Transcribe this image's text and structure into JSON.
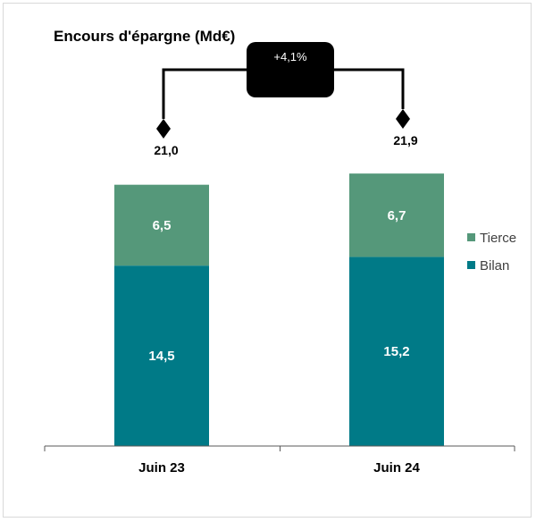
{
  "chart_data": {
    "type": "bar",
    "stacked": true,
    "title": "Encours d'épargne (Md€)",
    "categories": [
      "Juin 23",
      "Juin 24"
    ],
    "series": [
      {
        "name": "Bilan",
        "values": [
          14.5,
          15.2
        ],
        "labels": [
          "14,5",
          "15,2"
        ],
        "color": "#007A87"
      },
      {
        "name": "Tierce",
        "values": [
          6.5,
          6.7
        ],
        "labels": [
          "6,5",
          "6,7"
        ],
        "color": "#55987A"
      }
    ],
    "totals": [
      21.0,
      21.9
    ],
    "total_labels": [
      "21,0",
      "21,9"
    ],
    "variation_label": "+4,1%",
    "legend_position": "right",
    "ylim": [
      0,
      22.5
    ],
    "grid": false
  }
}
